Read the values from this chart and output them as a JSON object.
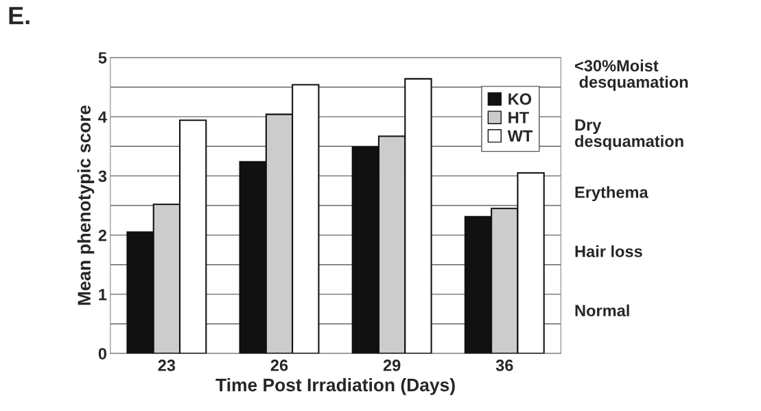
{
  "chart_data": {
    "type": "bar",
    "title": "E.",
    "xlabel": "Time Post Irradiation (Days)",
    "ylabel": "Mean phenotypic score",
    "categories": [
      "23",
      "26",
      "29",
      "36"
    ],
    "series": [
      {
        "name": "KO",
        "color": "#111111",
        "values": [
          2.05,
          3.24,
          3.49,
          2.31
        ]
      },
      {
        "name": "HT",
        "color": "#cccccc",
        "values": [
          2.52,
          4.04,
          3.67,
          2.45
        ]
      },
      {
        "name": "WT",
        "color": "#ffffff",
        "values": [
          3.94,
          4.54,
          4.64,
          3.05
        ]
      }
    ],
    "ylim": [
      0,
      5
    ],
    "yticks": [
      0,
      {
        "value": 0.5,
        "label": null
      },
      1,
      {
        "value": 1.5,
        "label": null
      },
      2,
      {
        "value": 2.5,
        "label": null
      },
      3,
      {
        "value": 3.5,
        "label": null
      },
      4,
      {
        "value": 4.5,
        "label": null
      },
      5
    ],
    "grid": "y",
    "legend": "top right",
    "annotations": [
      "<30%Moist\n desquamation",
      "Dry\ndesquamation",
      "Erythema",
      "Hair loss",
      "Normal"
    ]
  }
}
